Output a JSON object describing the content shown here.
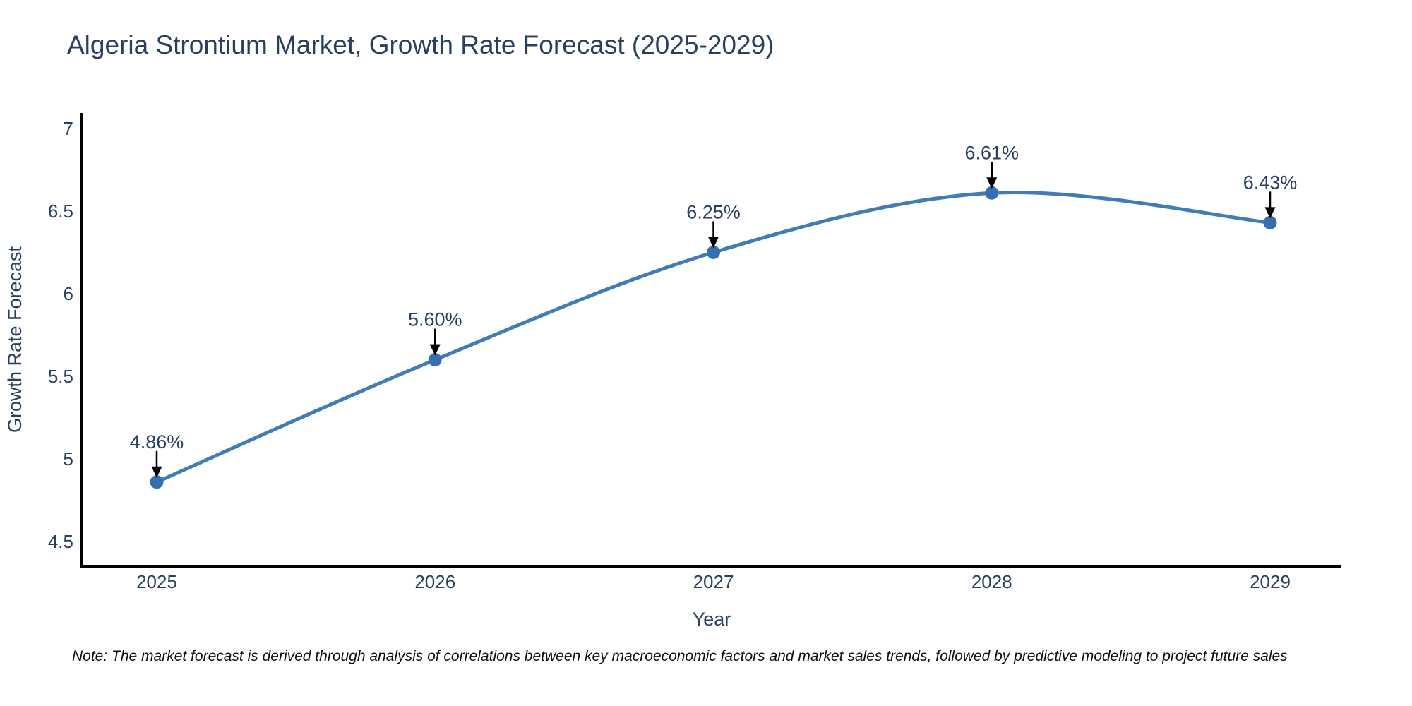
{
  "title": "Algeria Strontium Market, Growth Rate Forecast (2025-2029)",
  "note": "Note: The market forecast is derived through analysis of correlations between key macroeconomic factors and market sales trends, followed by predictive modeling to project future sales",
  "chart_data": {
    "type": "line",
    "title": "Algeria Strontium Market, Growth Rate Forecast (2025-2029)",
    "xlabel": "Year",
    "ylabel": "Growth Rate Forecast",
    "x": [
      2025,
      2026,
      2027,
      2028,
      2029
    ],
    "x_tick_labels": [
      "2025",
      "2026",
      "2027",
      "2028",
      "2029"
    ],
    "values": [
      4.86,
      5.6,
      6.25,
      6.61,
      6.43
    ],
    "point_labels": [
      "4.86%",
      "5.60%",
      "6.25%",
      "6.61%",
      "6.43%"
    ],
    "y_ticks": [
      4.5,
      5,
      5.5,
      6,
      6.5,
      7
    ],
    "y_tick_labels": [
      "4.5",
      "5",
      "5.5",
      "6",
      "6.5",
      "7"
    ],
    "ylim": [
      4.36,
      7.09
    ],
    "xlim": [
      2024.73,
      2029.26
    ],
    "line_shape": "spline",
    "grid": false,
    "legend": "none",
    "line_color": "#417cb6",
    "marker_color": "#3370ad",
    "axis_line_color": "#000000",
    "tick_text_color": "#2a3f5f",
    "annotation_text_color": "#2a3f5f",
    "annotation_arrow_color": "#000000"
  }
}
